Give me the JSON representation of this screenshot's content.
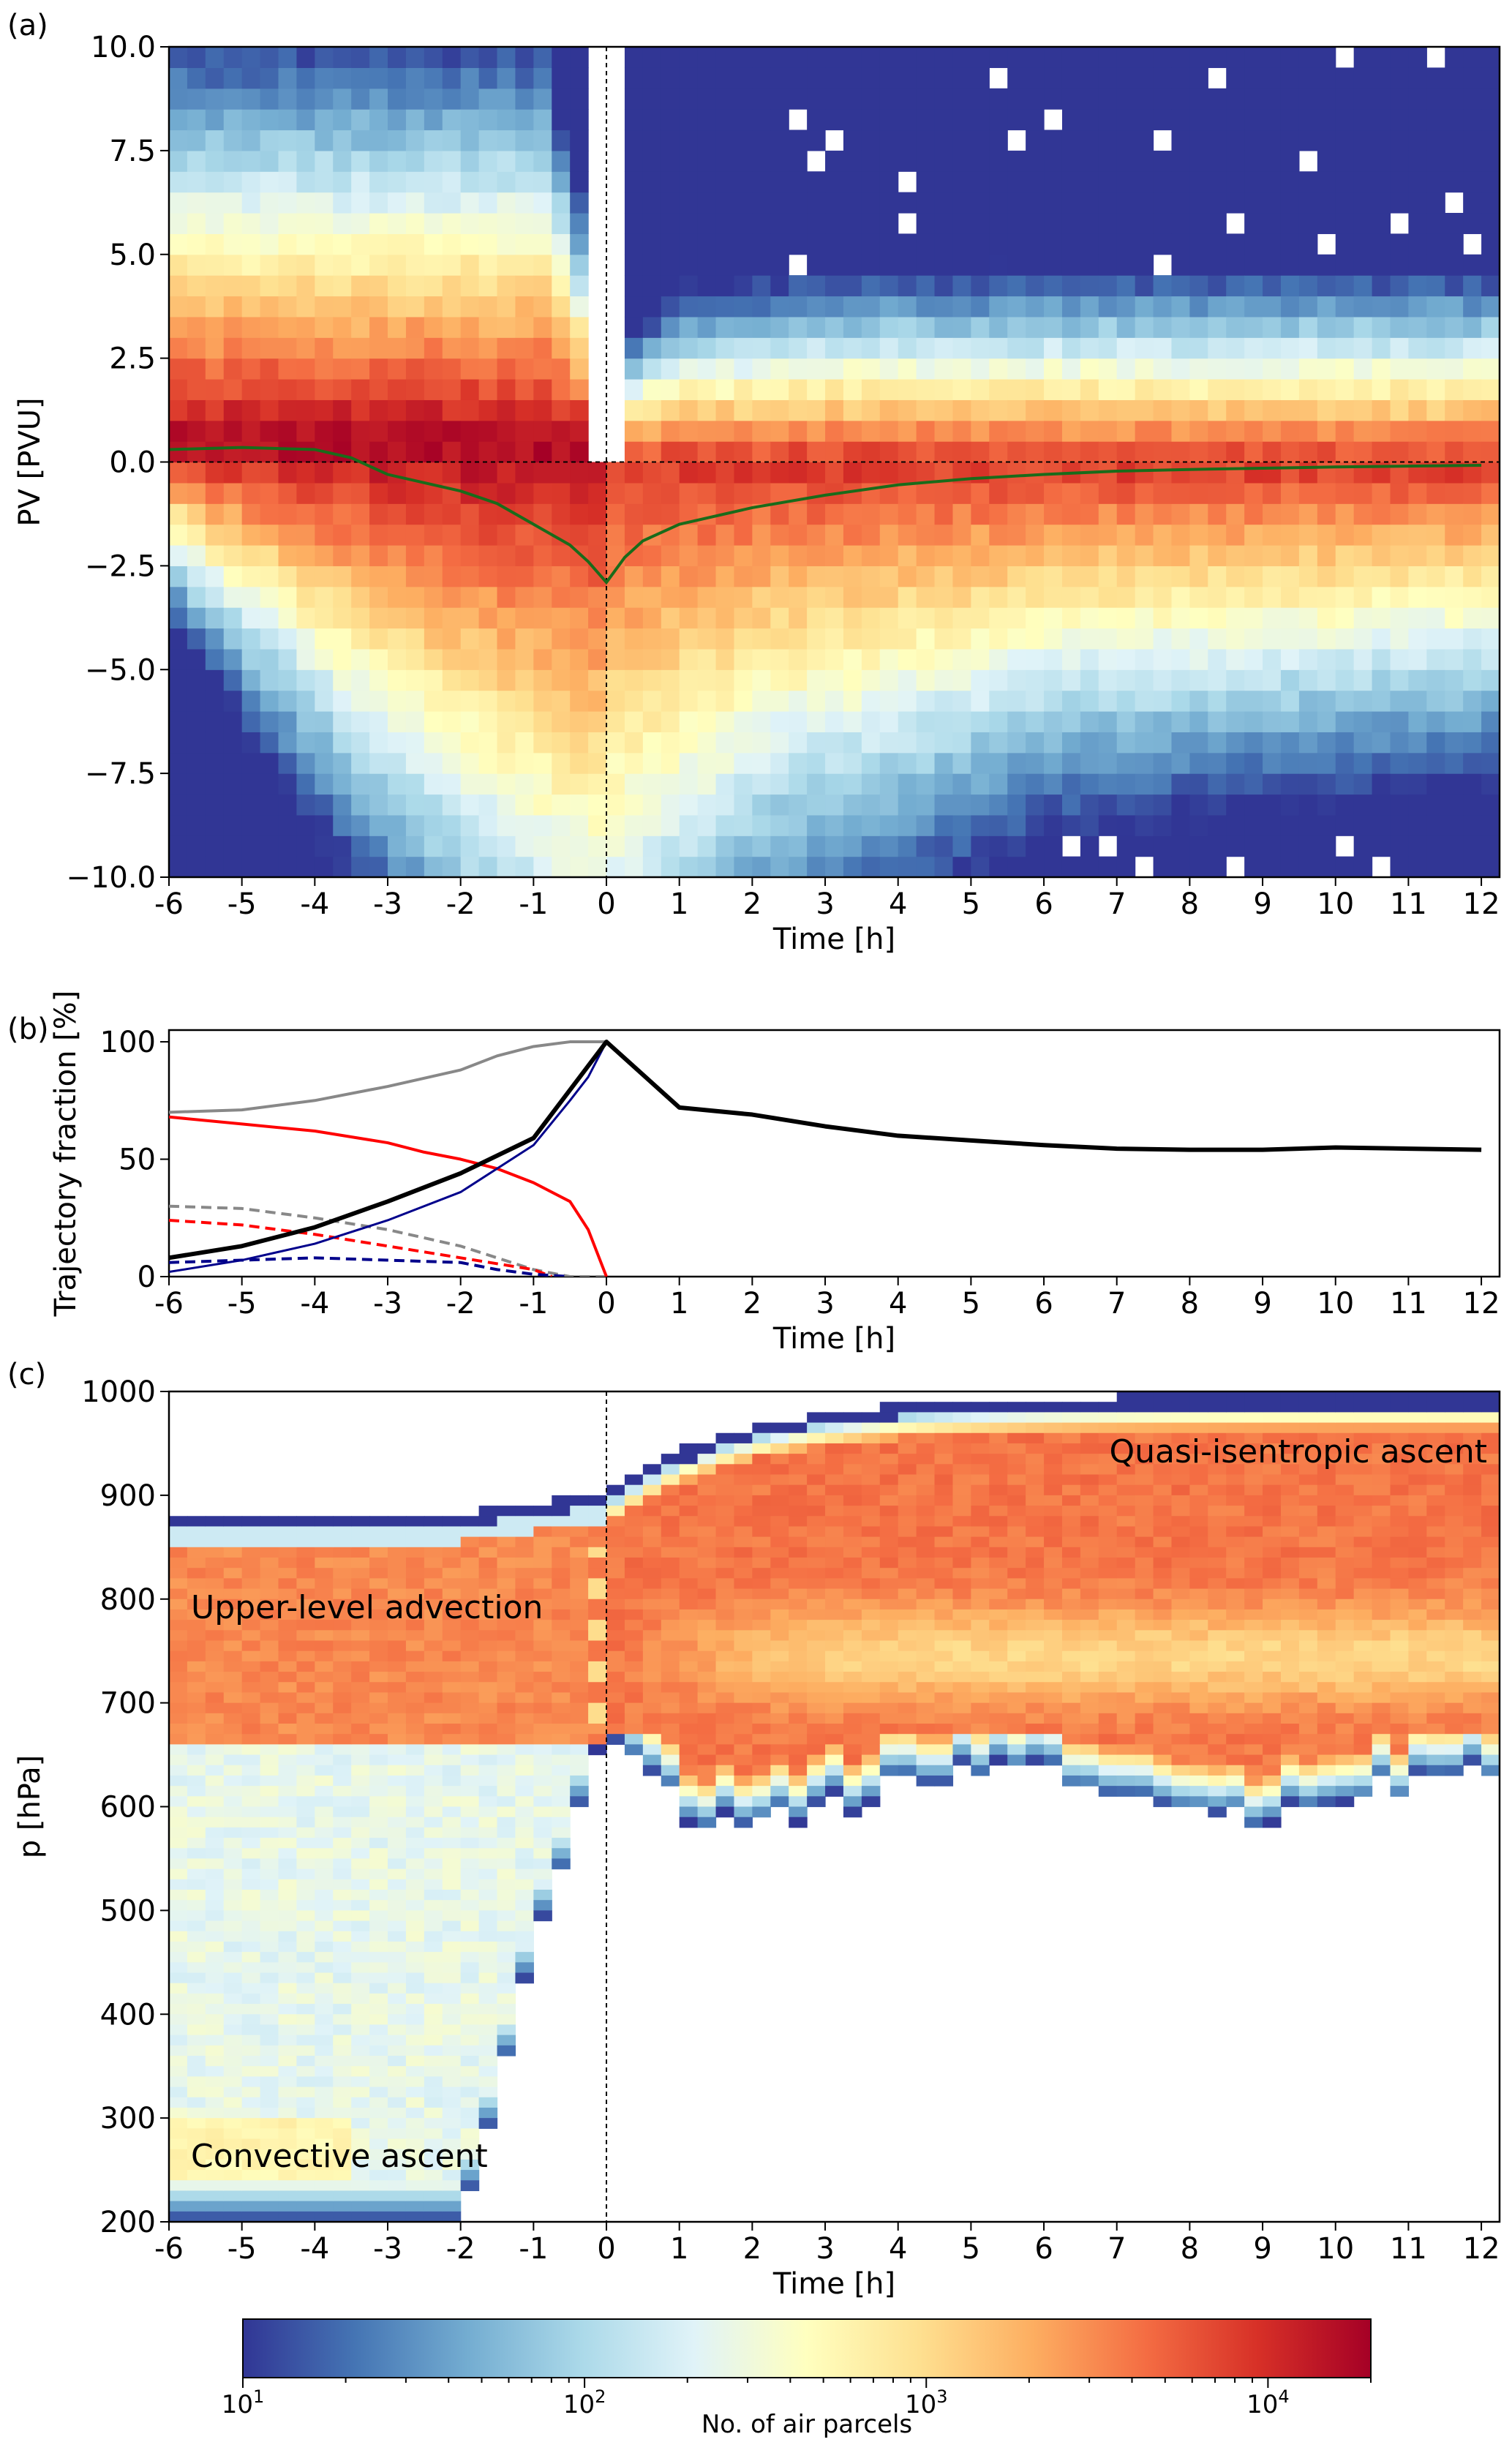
{
  "colormap": [
    "#313695",
    "#4575b4",
    "#74add1",
    "#abd9e9",
    "#e0f3f8",
    "#ffffbf",
    "#fee090",
    "#fdae61",
    "#f46d43",
    "#d73027",
    "#a50026"
  ],
  "chart_data": [
    {
      "id": "a",
      "panel_label": "(a)",
      "type": "heatmap",
      "xlabel": "Time [h]",
      "ylabel": "PV [PVU]",
      "xlim": [
        -6,
        12.25
      ],
      "ylim": [
        -10,
        10
      ],
      "xticks": [
        "-6",
        "-5",
        "-4",
        "-3",
        "-2",
        "-1",
        "0",
        "1",
        "2",
        "3",
        "4",
        "5",
        "6",
        "7",
        "8",
        "9",
        "10",
        "11",
        "12"
      ],
      "yticks": [
        "−10.0",
        "−7.5",
        "−5.0",
        "−2.5",
        "0.0",
        "2.5",
        "5.0",
        "7.5",
        "10.0"
      ],
      "ytick_values": [
        -10,
        -7.5,
        -5,
        -2.5,
        0,
        2.5,
        5,
        7.5,
        10
      ],
      "reference_lines": {
        "horizontal": 0,
        "vertical": 0,
        "style": "dashed"
      },
      "mean_line": {
        "color": "#1a6b1a",
        "x": [
          -6,
          -5,
          -4,
          -3.5,
          -3,
          -2,
          -1.5,
          -1,
          -0.5,
          -0.25,
          0,
          0.25,
          0.5,
          1,
          2,
          3,
          4,
          5,
          6,
          7,
          8,
          9,
          10,
          11,
          12
        ],
        "y": [
          0.3,
          0.35,
          0.3,
          0.1,
          -0.3,
          -0.7,
          -1.0,
          -1.5,
          -2.0,
          -2.4,
          -2.9,
          -2.3,
          -1.9,
          -1.5,
          -1.1,
          -0.8,
          -0.55,
          -0.4,
          -0.3,
          -0.22,
          -0.18,
          -0.15,
          -0.12,
          -0.1,
          -0.08
        ]
      }
    },
    {
      "id": "b",
      "panel_label": "(b)",
      "type": "line",
      "xlabel": "Time [h]",
      "ylabel": "Trajectory fraction [%]",
      "xlim": [
        -6,
        12.25
      ],
      "ylim": [
        0,
        105
      ],
      "xticks": [
        "-6",
        "-5",
        "-4",
        "-3",
        "-2",
        "-1",
        "0",
        "1",
        "2",
        "3",
        "4",
        "5",
        "6",
        "7",
        "8",
        "9",
        "10",
        "11",
        "12"
      ],
      "yticks": [
        "0",
        "50",
        "100"
      ],
      "ytick_values": [
        0,
        50,
        100
      ],
      "series": [
        {
          "color": "#888888",
          "dash": false,
          "width": 4,
          "x": [
            -6,
            -5,
            -4,
            -3,
            -2,
            -1.5,
            -1,
            -0.5,
            0
          ],
          "y": [
            70,
            71,
            75,
            81,
            88,
            94,
            98,
            100,
            100
          ]
        },
        {
          "color": "#888888",
          "dash": true,
          "width": 4,
          "x": [
            -6,
            -5,
            -4,
            -3,
            -2,
            -1.5,
            -1,
            -0.5,
            0
          ],
          "y": [
            30,
            29,
            25,
            20,
            13,
            8,
            3,
            0,
            0
          ]
        },
        {
          "color": "#ff0000",
          "dash": false,
          "width": 4,
          "x": [
            -6,
            -5,
            -4,
            -3,
            -2.5,
            -2,
            -1.5,
            -1,
            -0.5,
            -0.25,
            0
          ],
          "y": [
            68,
            65,
            62,
            57,
            53,
            50,
            46,
            40,
            32,
            20,
            0
          ]
        },
        {
          "color": "#ff0000",
          "dash": true,
          "width": 4,
          "x": [
            -6,
            -5,
            -4,
            -3,
            -2,
            -1,
            -0.75
          ],
          "y": [
            24,
            22,
            18,
            13,
            8,
            3,
            0
          ]
        },
        {
          "color": "#00008b",
          "dash": true,
          "width": 4,
          "x": [
            -6,
            -5,
            -4,
            -3,
            -2,
            -1.5,
            -1,
            -0.5
          ],
          "y": [
            6,
            7,
            8,
            7,
            6,
            3,
            1,
            0
          ]
        },
        {
          "color": "#00008b",
          "dash": false,
          "width": 3,
          "x": [
            -6,
            -5,
            -4,
            -3,
            -2,
            -1,
            -0.5,
            -0.25,
            0
          ],
          "y": [
            2,
            7,
            14,
            24,
            36,
            56,
            75,
            85,
            100
          ]
        },
        {
          "color": "#000000",
          "dash": false,
          "width": 6,
          "x": [
            -6,
            -5,
            -4,
            -3,
            -2,
            -1,
            0,
            1,
            2,
            3,
            4,
            5,
            6,
            7,
            8,
            9,
            10,
            11,
            12
          ],
          "y": [
            8,
            13,
            21,
            32,
            44,
            59,
            100,
            72,
            69,
            64,
            60,
            58,
            56,
            54.5,
            54,
            54,
            55,
            54.5,
            54
          ]
        }
      ]
    },
    {
      "id": "c",
      "panel_label": "(c)",
      "type": "heatmap",
      "xlabel": "Time [h]",
      "ylabel": "p [hPa]",
      "xlim": [
        -6,
        12.25
      ],
      "ylim": [
        1000,
        200
      ],
      "xticks": [
        "-6",
        "-5",
        "-4",
        "-3",
        "-2",
        "-1",
        "0",
        "1",
        "2",
        "3",
        "4",
        "5",
        "6",
        "7",
        "8",
        "9",
        "10",
        "11",
        "12"
      ],
      "yticks": [
        "200",
        "300",
        "400",
        "500",
        "600",
        "700",
        "800",
        "900",
        "1000"
      ],
      "ytick_values": [
        200,
        300,
        400,
        500,
        600,
        700,
        800,
        900,
        1000
      ],
      "reference_lines": {
        "vertical": 0,
        "style": "dashed"
      },
      "annotations": [
        "Upper-level advection",
        "Convective ascent",
        "Quasi-isentropic ascent"
      ]
    }
  ],
  "colorbar": {
    "label": "No. of air parcels",
    "scale": "log",
    "range": [
      10,
      20000
    ],
    "ticks": [
      {
        "base": "10",
        "exp": "1"
      },
      {
        "base": "10",
        "exp": "2"
      },
      {
        "base": "10",
        "exp": "3"
      },
      {
        "base": "10",
        "exp": "4"
      }
    ]
  }
}
